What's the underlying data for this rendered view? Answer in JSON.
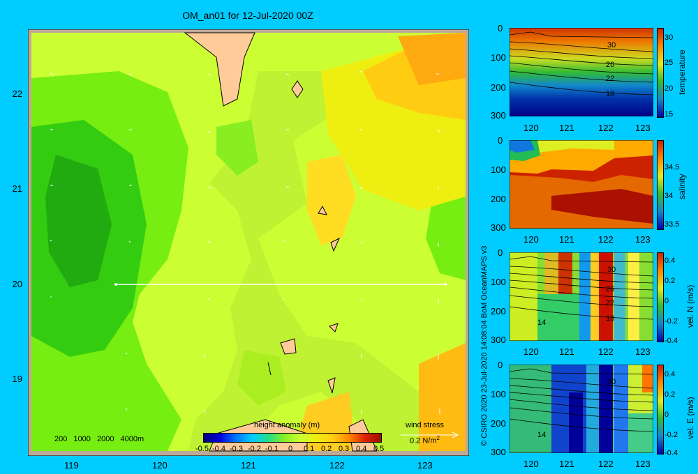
{
  "title": "OM_an01 for 12-Jul-2020 00Z",
  "colors": {
    "background": "#00ccff",
    "land": "#ffcc99",
    "shelf": "#bbaa99"
  },
  "map": {
    "x_ticks": [
      "119",
      "120",
      "121",
      "122",
      "123"
    ],
    "y_ticks": [
      "22",
      "21",
      "20",
      "19"
    ],
    "depth_legend": [
      "200",
      "1000",
      "2000",
      "4000m"
    ],
    "colorbar_label": "height anomaly (m)",
    "colorbar_ticks": [
      "-0.5",
      "-0.4",
      "-0.3",
      "-0.2",
      "-0.1",
      "0",
      "0.1",
      "0.2",
      "0.3",
      "0.4",
      "0.5"
    ],
    "wind_stress_label": "wind stress",
    "wind_stress_value": "0.2 N/m",
    "wind_stress_exp": "2"
  },
  "sections": [
    {
      "label": "temperature",
      "y_ticks": [
        "0",
        "100",
        "200",
        "300"
      ],
      "x_ticks": [
        "120",
        "121",
        "122",
        "123"
      ],
      "cbar_ticks": [
        "30",
        "25",
        "20",
        "15"
      ],
      "contour_labels": [
        "30",
        "26",
        "22",
        "18"
      ]
    },
    {
      "label": "salinity",
      "y_ticks": [
        "0",
        "100",
        "200",
        "300"
      ],
      "x_ticks": [
        "120",
        "121",
        "122",
        "123"
      ],
      "cbar_ticks": [
        "34.5",
        "34",
        "33.5"
      ],
      "contour_labels": []
    },
    {
      "label": "vel. N (m/s)",
      "y_ticks": [
        "0",
        "100",
        "200",
        "300"
      ],
      "x_ticks": [
        "120",
        "121",
        "122",
        "123"
      ],
      "cbar_ticks": [
        "0.4",
        "0.2",
        "0",
        "-0.2",
        "-0.4"
      ],
      "contour_labels": [
        "30",
        "26",
        "22",
        "18",
        "14"
      ]
    },
    {
      "label": "vel. E (m/s)",
      "y_ticks": [
        "0",
        "100",
        "200",
        "300"
      ],
      "x_ticks": [
        "120",
        "121",
        "122",
        "123"
      ],
      "cbar_ticks": [
        "0.4",
        "0.2",
        "0",
        "-0.2",
        "-0.4"
      ],
      "contour_labels": [
        "30",
        "14"
      ]
    }
  ],
  "credit": "© CSIRO 2020   23-Jul-2020 14:08:04 BoM OceanMAPS v3"
}
